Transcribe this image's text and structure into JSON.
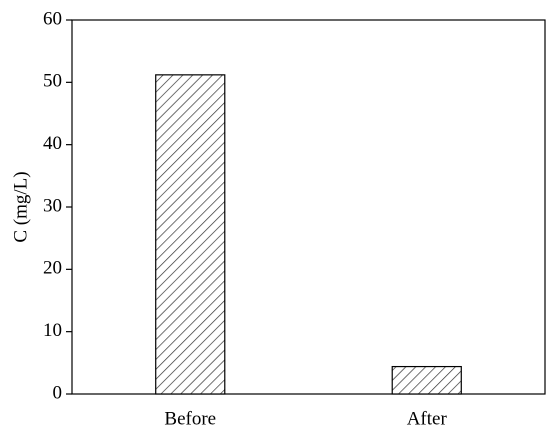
{
  "chart_data": {
    "type": "bar",
    "y_label": "C (mg/L)",
    "categories": [
      "Before",
      "After"
    ],
    "values": [
      51.2,
      4.4
    ],
    "color": "#333333",
    "ylim": [
      0,
      60
    ],
    "yticks": [
      0,
      10,
      20,
      30,
      40,
      50,
      60
    ],
    "grid": false
  }
}
